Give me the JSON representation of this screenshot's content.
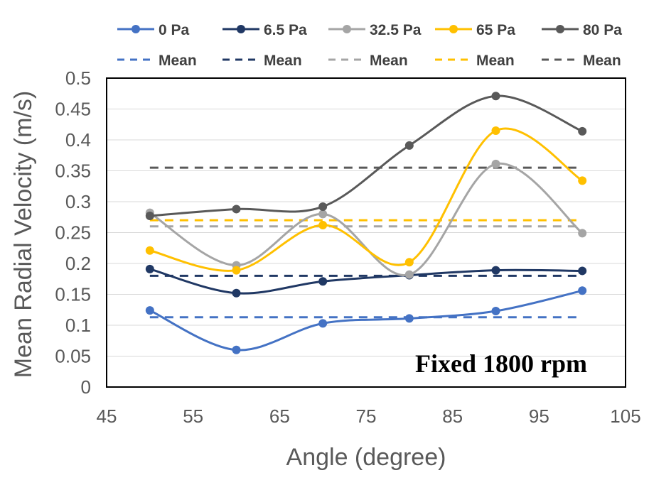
{
  "chart_data": {
    "type": "line",
    "x": [
      50,
      60,
      70,
      80,
      90,
      100
    ],
    "series": [
      {
        "name": "0 Pa",
        "color": "#4472C4",
        "values": [
          0.124,
          0.06,
          0.103,
          0.111,
          0.123,
          0.156
        ],
        "mean": 0.113
      },
      {
        "name": "6.5 Pa",
        "color": "#203864",
        "values": [
          0.191,
          0.152,
          0.171,
          0.181,
          0.189,
          0.188
        ],
        "mean": 0.18
      },
      {
        "name": "32.5 Pa",
        "color": "#A5A5A5",
        "values": [
          0.282,
          0.197,
          0.28,
          0.182,
          0.361,
          0.249
        ],
        "mean": 0.26
      },
      {
        "name": "65 Pa",
        "color": "#FFC000",
        "values": [
          0.221,
          0.189,
          0.262,
          0.202,
          0.415,
          0.334
        ],
        "mean": 0.27
      },
      {
        "name": "80 Pa",
        "color": "#595959",
        "values": [
          0.277,
          0.288,
          0.292,
          0.391,
          0.471,
          0.414
        ],
        "mean": 0.355
      }
    ],
    "mean_label": "Mean",
    "mean_x_range": [
      50,
      100
    ],
    "title": "",
    "annotation": "Fixed 1800 rpm",
    "xlabel": "Angle (degree)",
    "ylabel": "Mean Radial Velocity (m/s)",
    "xlim": [
      45,
      105
    ],
    "ylim": [
      0,
      0.5
    ],
    "x_ticks": [
      "45",
      "55",
      "65",
      "75",
      "85",
      "95",
      "105"
    ],
    "y_ticks": [
      "0",
      "0.05",
      "0.1",
      "0.15",
      "0.2",
      "0.25",
      "0.3",
      "0.35",
      "0.4",
      "0.45",
      "0.5"
    ],
    "grid": "horizontal",
    "legend_position": "top"
  }
}
